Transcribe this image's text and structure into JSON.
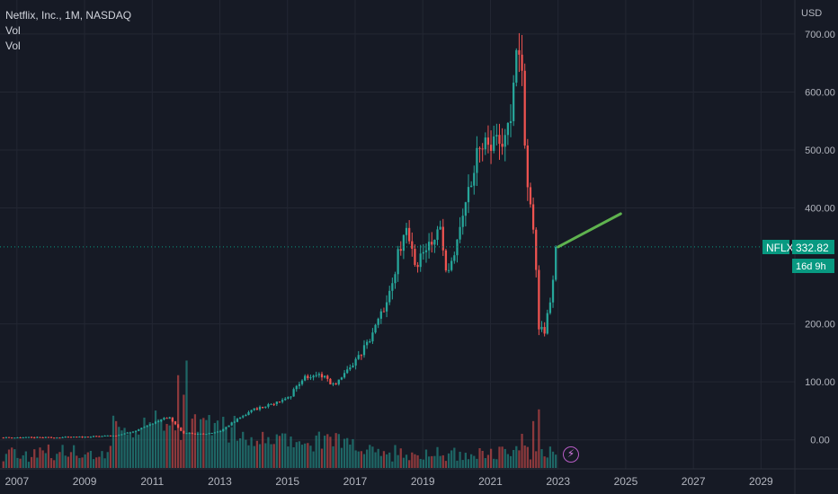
{
  "legend": {
    "title": "Netflix, Inc., 1M, NASDAQ",
    "indicator_1": "Vol",
    "indicator_2": "Vol"
  },
  "price_tag": {
    "symbol": "NFLX",
    "price": "332.82",
    "countdown": "16d 9h"
  },
  "currency": "USD",
  "volume_icon": "lightning-bolt-icon",
  "colors": {
    "background": "#161a25",
    "grid": "#232733",
    "up": "#26a69a",
    "down": "#ef5350",
    "projection": "#5fb34f",
    "price_line": "#089981",
    "axis_text": "#b2b5be"
  },
  "chart_data": {
    "type": "candlestick",
    "title": "Netflix, Inc., 1M, NASDAQ",
    "interval": "1M",
    "y_ticks": [
      "700.00",
      "600.00",
      "500.00",
      "400.00",
      "200.00",
      "100.00",
      "0.00"
    ],
    "x_ticks": [
      "2007",
      "2009",
      "2011",
      "2013",
      "2015",
      "2017",
      "2019",
      "2021",
      "2023",
      "2025",
      "2027",
      "2029"
    ],
    "ylim": [
      -50,
      720
    ],
    "xlim": [
      2006.5,
      2030.0
    ],
    "last_price": 332.82,
    "anchors": [
      {
        "t": 2006.6,
        "p": 4
      },
      {
        "t": 2008.0,
        "p": 4
      },
      {
        "t": 2009.0,
        "p": 5
      },
      {
        "t": 2010.0,
        "p": 8
      },
      {
        "t": 2010.5,
        "p": 15
      },
      {
        "t": 2011.0,
        "p": 28
      },
      {
        "t": 2011.5,
        "p": 40
      },
      {
        "t": 2011.9,
        "p": 12
      },
      {
        "t": 2012.5,
        "p": 10
      },
      {
        "t": 2013.0,
        "p": 15
      },
      {
        "t": 2013.5,
        "p": 35
      },
      {
        "t": 2014.0,
        "p": 52
      },
      {
        "t": 2014.5,
        "p": 62
      },
      {
        "t": 2015.0,
        "p": 70
      },
      {
        "t": 2015.5,
        "p": 110
      },
      {
        "t": 2016.0,
        "p": 112
      },
      {
        "t": 2016.4,
        "p": 92
      },
      {
        "t": 2017.0,
        "p": 135
      },
      {
        "t": 2017.5,
        "p": 180
      },
      {
        "t": 2018.0,
        "p": 245
      },
      {
        "t": 2018.5,
        "p": 380
      },
      {
        "t": 2018.85,
        "p": 290
      },
      {
        "t": 2019.0,
        "p": 330
      },
      {
        "t": 2019.5,
        "p": 370
      },
      {
        "t": 2019.7,
        "p": 280
      },
      {
        "t": 2020.0,
        "p": 330
      },
      {
        "t": 2020.3,
        "p": 420
      },
      {
        "t": 2020.6,
        "p": 500
      },
      {
        "t": 2020.9,
        "p": 520
      },
      {
        "t": 2021.3,
        "p": 515
      },
      {
        "t": 2021.6,
        "p": 560
      },
      {
        "t": 2021.8,
        "p": 680
      },
      {
        "t": 2021.95,
        "p": 605
      },
      {
        "t": 2022.1,
        "p": 430
      },
      {
        "t": 2022.3,
        "p": 360
      },
      {
        "t": 2022.42,
        "p": 195
      },
      {
        "t": 2022.6,
        "p": 180
      },
      {
        "t": 2022.75,
        "p": 235
      },
      {
        "t": 2022.9,
        "p": 290
      },
      {
        "t": 2023.0,
        "p": 332.82
      }
    ],
    "volume": {
      "ylim": [
        0,
        115
      ],
      "spikes": [
        {
          "t": 2011.0,
          "v": 45
        },
        {
          "t": 2011.3,
          "v": 48
        },
        {
          "t": 2011.6,
          "v": 50
        },
        {
          "t": 2011.75,
          "v": 95
        },
        {
          "t": 2011.9,
          "v": 75
        },
        {
          "t": 2012.05,
          "v": 110
        },
        {
          "t": 2012.3,
          "v": 55
        },
        {
          "t": 2021.95,
          "v": 35
        },
        {
          "t": 2022.3,
          "v": 48
        },
        {
          "t": 2022.42,
          "v": 60
        }
      ]
    },
    "projection": {
      "from": {
        "t": 2023.0,
        "p": 332.82
      },
      "to": {
        "t": 2024.85,
        "p": 390
      }
    }
  }
}
